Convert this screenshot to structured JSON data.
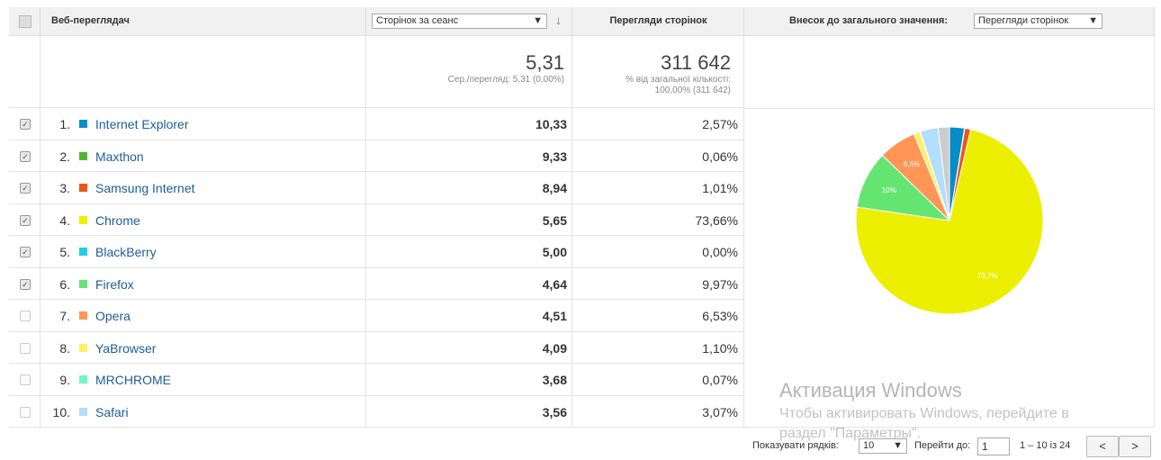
{
  "header": {
    "browser": "Веб-переглядач",
    "metric_select": "Сторінок за сеанс",
    "pageviews": "Перегляди сторінок",
    "contribution": "Внесок до загального значення:",
    "contribution_select": "Перегляди сторінок"
  },
  "summary": {
    "pages_per_session": "5,31",
    "pages_per_session_note": "Сер./перегляд: 5,31 (0,00%)",
    "pageviews": "311 642",
    "pageviews_note": "% від загальної кількості: 100,00% (311 642)"
  },
  "table": {
    "rows": [
      [
        "1.",
        "Internet Explorer",
        "10,33",
        "2,57%"
      ],
      [
        "2.",
        "Maxthon",
        "9,33",
        "0,06%"
      ],
      [
        "3.",
        "Samsung Internet",
        "8,94",
        "1,01%"
      ],
      [
        "4.",
        "Chrome",
        "5,65",
        "73,66%"
      ],
      [
        "5.",
        "BlackBerry",
        "5,00",
        "0,00%"
      ],
      [
        "6.",
        "Firefox",
        "4,64",
        "9,97%"
      ],
      [
        "7.",
        "Opera",
        "4,51",
        "6,53%"
      ],
      [
        "8.",
        "YaBrowser",
        "4,09",
        "1,10%"
      ],
      [
        "9.",
        "MRCHROME",
        "3,68",
        "0,07%"
      ],
      [
        "10.",
        "Safari",
        "3,56",
        "3,07%"
      ]
    ],
    "checked": [
      true,
      true,
      true,
      true,
      true,
      true,
      false,
      false,
      false,
      false
    ]
  },
  "chart_data": {
    "type": "pie",
    "values": [
      2.57,
      0.06,
      1.01,
      73.66,
      0.0,
      9.97,
      6.53,
      1.1,
      0.07,
      3.07,
      1.96
    ],
    "value_labels": [
      null,
      null,
      null,
      "73,7%",
      null,
      "10%",
      "6,5%",
      null,
      null,
      null,
      null
    ],
    "colors": [
      "#058dc7",
      "#50b432",
      "#ed561b",
      "#edef00",
      "#24cbe5",
      "#64e572",
      "#ff9655",
      "#fff263",
      "#6af9c4",
      "#b2deff",
      "#cccccc"
    ]
  },
  "footer": {
    "rows_label": "Показувати рядків:",
    "rows_value": "10",
    "goto_label": "Перейти до:",
    "goto_value": "1",
    "range": "1 – 10 із 24"
  },
  "watermark": {
    "line1": "Активация Windows",
    "line2": "Чтобы активировать Windows, перейдите в",
    "line3": "раздел \"Параметры\"."
  }
}
